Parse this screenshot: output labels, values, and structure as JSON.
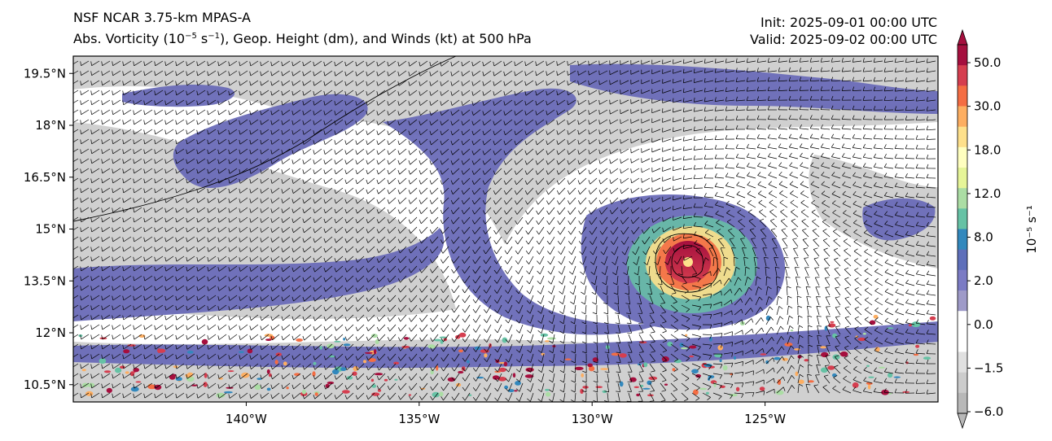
{
  "titles": {
    "left_line1": "NSF NCAR 3.75-km MPAS-A",
    "left_line2_pre": "Abs. Vorticity (10",
    "left_line2_exp1": "−5",
    "left_line2_mid": " s",
    "left_line2_exp2": "−1",
    "left_line2_post": "), Geop. Height (dm), and Winds (kt) at 500 hPa",
    "init": "Init: 2025-09-01 00:00 UTC",
    "valid": "Valid: 2025-09-02 00:00 UTC"
  },
  "map": {
    "lat_labels": [
      "19.5°N",
      "18°N",
      "16.5°N",
      "15°N",
      "13.5°N",
      "12°N",
      "10.5°N"
    ],
    "lat_values": [
      19.5,
      18,
      16.5,
      15,
      13.5,
      12,
      10.5
    ],
    "lat_range": [
      10.0,
      20.0
    ],
    "lon_labels": [
      "140°W",
      "135°W",
      "130°W",
      "125°W"
    ],
    "lon_values": [
      -140,
      -135,
      -130,
      -125
    ],
    "lon_range": [
      -145.0,
      -120.0
    ],
    "storm_center": {
      "lat": 14.0,
      "lon": -127.0
    }
  },
  "colorbar": {
    "tick_labels": [
      "50.0",
      "30.0",
      "18.0",
      "12.0",
      "8.0",
      "2.0",
      "0.0",
      "−1.5",
      "−6.0"
    ],
    "unit_label": "10⁻⁵ s⁻¹",
    "colors_top_to_bottom": [
      "#a50f3e",
      "#d53e4f",
      "#f46d43",
      "#fdae61",
      "#fee08b",
      "#ffffbf",
      "#e6f598",
      "#abdda4",
      "#66c2a5",
      "#3288bd",
      "#5e6fba",
      "#7b7bc4",
      "#9e9ac8",
      "#ffffff",
      "#ffffff",
      "#e0e0e0",
      "#cccccc",
      "#b8b8b8"
    ]
  }
}
